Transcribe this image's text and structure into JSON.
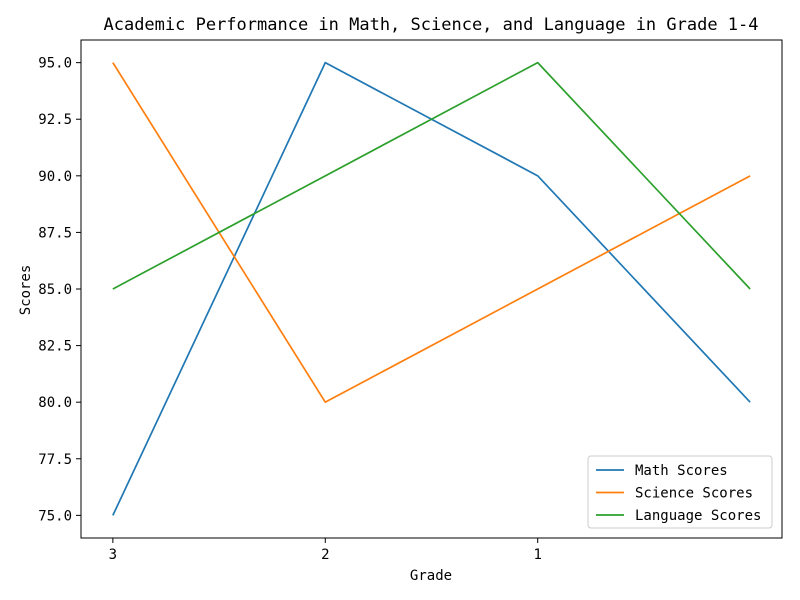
{
  "chart_data": {
    "type": "line",
    "title": "Academic Performance in Math, Science, and Language in Grade 1-4",
    "xlabel": "Grade",
    "ylabel": "Scores",
    "x_tick_labels": [
      "3",
      "2",
      "1",
      ""
    ],
    "x": [
      0,
      1,
      2,
      3
    ],
    "xlim": [
      -0.15,
      3.15
    ],
    "ylim": [
      74.0,
      96.0
    ],
    "y_ticks": [
      75.0,
      77.5,
      80.0,
      82.5,
      85.0,
      87.5,
      90.0,
      92.5,
      95.0
    ],
    "y_tick_labels": [
      "75.0",
      "77.5",
      "80.0",
      "82.5",
      "85.0",
      "87.5",
      "90.0",
      "92.5",
      "95.0"
    ],
    "grid": false,
    "legend_position": "lower-right",
    "series": [
      {
        "name": "Math Scores",
        "color": "#1f77b4",
        "values": [
          75,
          95,
          90,
          80
        ]
      },
      {
        "name": "Science Scores",
        "color": "#ff7f0e",
        "values": [
          95,
          80,
          85,
          90
        ]
      },
      {
        "name": "Language Scores",
        "color": "#2ca02c",
        "values": [
          85,
          90,
          95,
          85
        ]
      }
    ]
  }
}
